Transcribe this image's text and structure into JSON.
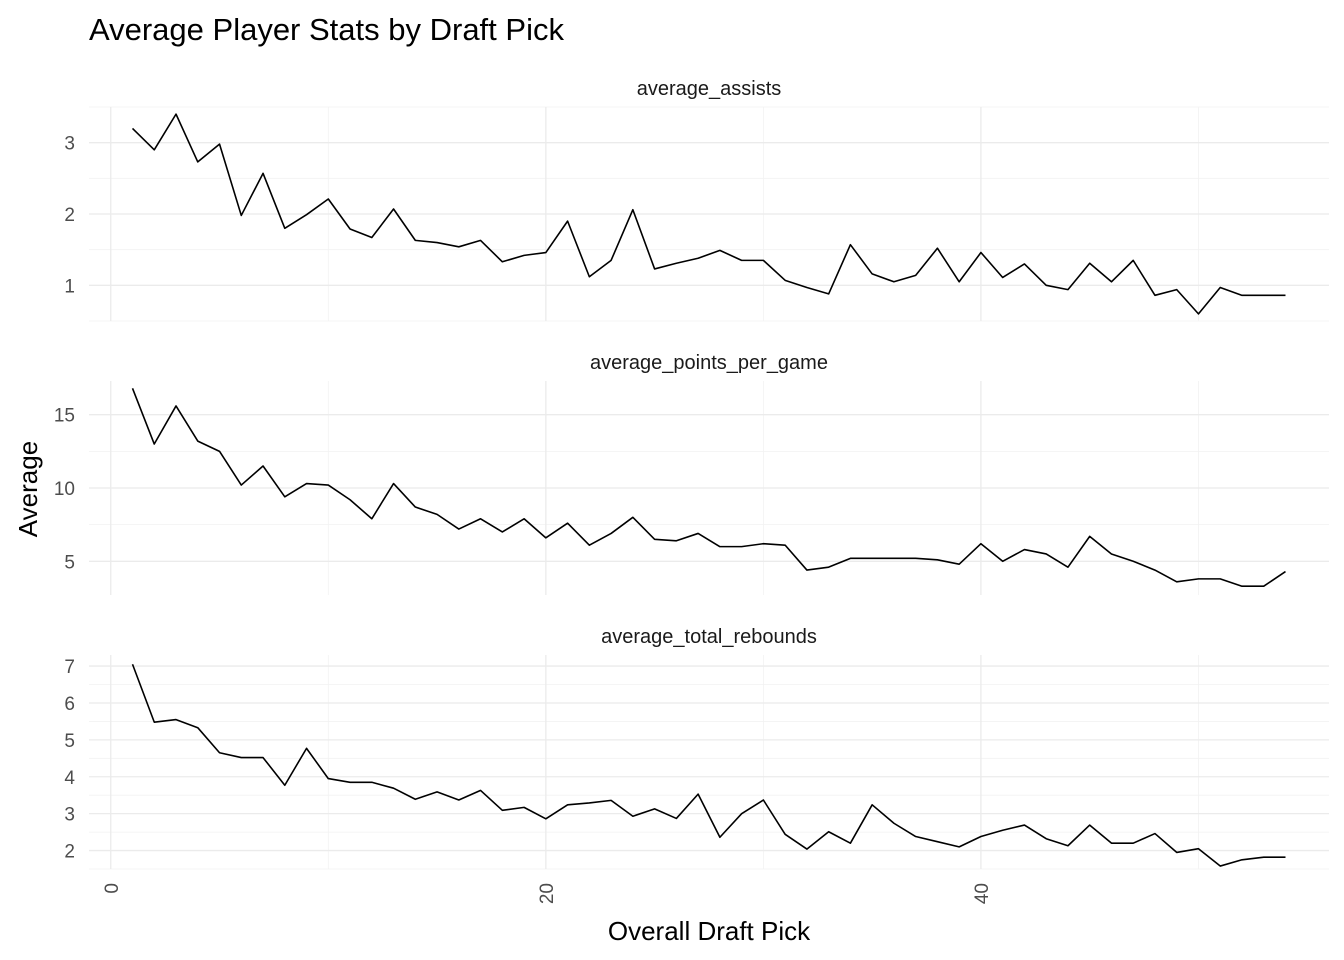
{
  "chart_data": {
    "type": "line",
    "title": "Average Player Stats by Draft Pick",
    "xlabel": "Overall Draft Pick",
    "ylabel": "Average",
    "xlim": [
      -1,
      56
    ],
    "x_ticks": [
      0,
      20,
      40
    ],
    "x_tick_labels": [
      "0",
      "20",
      "40"
    ],
    "grid": true,
    "facets": [
      {
        "name": "average_assists",
        "ylim": [
          0.5,
          3.5
        ],
        "y_ticks": [
          1,
          2,
          3
        ],
        "y_tick_labels": [
          "1",
          "2",
          "3"
        ],
        "x": [
          1,
          2,
          3,
          4,
          5,
          6,
          7,
          8,
          9,
          10,
          11,
          12,
          13,
          14,
          15,
          16,
          17,
          18,
          19,
          20,
          21,
          22,
          23,
          24,
          25,
          26,
          27,
          28,
          29,
          30,
          31,
          32,
          33,
          34,
          35,
          36,
          37,
          38,
          39,
          40,
          41,
          42,
          43,
          44,
          45,
          46,
          47,
          48,
          49,
          50,
          51,
          52,
          53,
          54
        ],
        "values": [
          3.2,
          2.9,
          3.4,
          2.73,
          2.98,
          1.98,
          2.57,
          1.8,
          1.99,
          2.21,
          1.79,
          1.67,
          2.07,
          1.63,
          1.6,
          1.54,
          1.63,
          1.33,
          1.42,
          1.46,
          1.9,
          1.12,
          1.35,
          2.06,
          1.23,
          1.31,
          1.38,
          1.49,
          1.35,
          1.35,
          1.07,
          0.97,
          0.88,
          1.57,
          1.16,
          1.05,
          1.14,
          1.52,
          1.05,
          1.46,
          1.11,
          1.3,
          1.0,
          0.94,
          1.31,
          1.05,
          1.35,
          0.86,
          0.94,
          0.6,
          0.97,
          0.86,
          0.86,
          0.86
        ]
      },
      {
        "name": "average_points_per_game",
        "ylim": [
          2.7,
          17.3
        ],
        "y_ticks": [
          5,
          10,
          15
        ],
        "y_tick_labels": [
          "5",
          "10",
          "15"
        ],
        "x": [
          1,
          2,
          3,
          4,
          5,
          6,
          7,
          8,
          9,
          10,
          11,
          12,
          13,
          14,
          15,
          16,
          17,
          18,
          19,
          20,
          21,
          22,
          23,
          24,
          25,
          26,
          27,
          28,
          29,
          30,
          31,
          32,
          33,
          34,
          35,
          36,
          37,
          38,
          39,
          40,
          41,
          42,
          43,
          44,
          45,
          46,
          47,
          48,
          49,
          50,
          51,
          52,
          53,
          54
        ],
        "values": [
          16.8,
          13.0,
          15.6,
          13.2,
          12.5,
          10.2,
          11.5,
          9.4,
          10.3,
          10.2,
          9.2,
          7.9,
          10.3,
          8.7,
          8.2,
          7.2,
          7.9,
          7.0,
          7.9,
          6.6,
          7.6,
          6.1,
          6.9,
          8.0,
          6.5,
          6.4,
          6.9,
          6.0,
          6.0,
          6.2,
          6.1,
          4.4,
          4.6,
          5.2,
          5.2,
          5.2,
          5.2,
          5.1,
          4.8,
          6.2,
          5.0,
          5.8,
          5.5,
          4.6,
          6.7,
          5.5,
          5.0,
          4.4,
          3.6,
          3.8,
          3.8,
          3.3,
          3.3,
          4.3
        ]
      },
      {
        "name": "average_total_rebounds",
        "ylim": [
          1.5,
          7.3
        ],
        "y_ticks": [
          2,
          3,
          4,
          5,
          6,
          7
        ],
        "y_tick_labels": [
          "2",
          "3",
          "4",
          "5",
          "6",
          "7"
        ],
        "x": [
          1,
          2,
          3,
          4,
          5,
          6,
          7,
          8,
          9,
          10,
          11,
          12,
          13,
          14,
          15,
          16,
          17,
          18,
          19,
          20,
          21,
          22,
          23,
          24,
          25,
          26,
          27,
          28,
          29,
          30,
          31,
          32,
          33,
          34,
          35,
          36,
          37,
          38,
          39,
          40,
          41,
          42,
          43,
          44,
          45,
          46,
          47,
          48,
          49,
          50,
          51,
          52,
          53,
          54
        ],
        "values": [
          7.05,
          5.48,
          5.55,
          5.33,
          4.65,
          4.52,
          4.52,
          3.77,
          4.77,
          3.95,
          3.85,
          3.85,
          3.69,
          3.39,
          3.59,
          3.37,
          3.63,
          3.09,
          3.17,
          2.86,
          3.24,
          3.29,
          3.36,
          2.93,
          3.13,
          2.87,
          3.53,
          2.36,
          3.0,
          3.37,
          2.44,
          2.04,
          2.51,
          2.2,
          3.24,
          2.74,
          2.38,
          2.24,
          2.1,
          2.38,
          2.55,
          2.69,
          2.32,
          2.13,
          2.69,
          2.2,
          2.2,
          2.46,
          1.95,
          2.05,
          1.58,
          1.75,
          1.82,
          1.82
        ]
      }
    ]
  }
}
